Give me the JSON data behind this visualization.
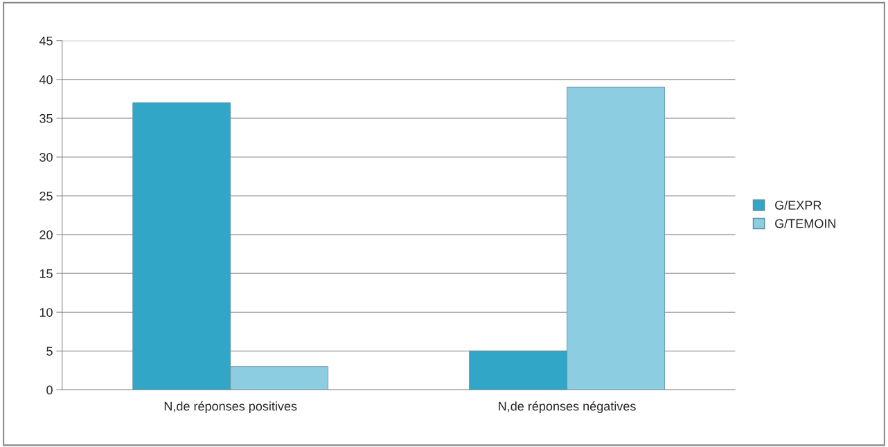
{
  "chart_data": {
    "type": "bar",
    "categories": [
      "N,de réponses positives",
      "N,de réponses négatives"
    ],
    "series": [
      {
        "name": "G/EXPR",
        "color": "#31a6c6",
        "values": [
          37,
          5
        ]
      },
      {
        "name": "G/TEMOIN",
        "color": "#8dcde2",
        "values": [
          3,
          39
        ]
      }
    ],
    "ylim": [
      0,
      45
    ],
    "yticks": [
      0,
      5,
      10,
      15,
      20,
      25,
      30,
      35,
      40,
      45
    ],
    "grid": "y",
    "legend": "right"
  }
}
